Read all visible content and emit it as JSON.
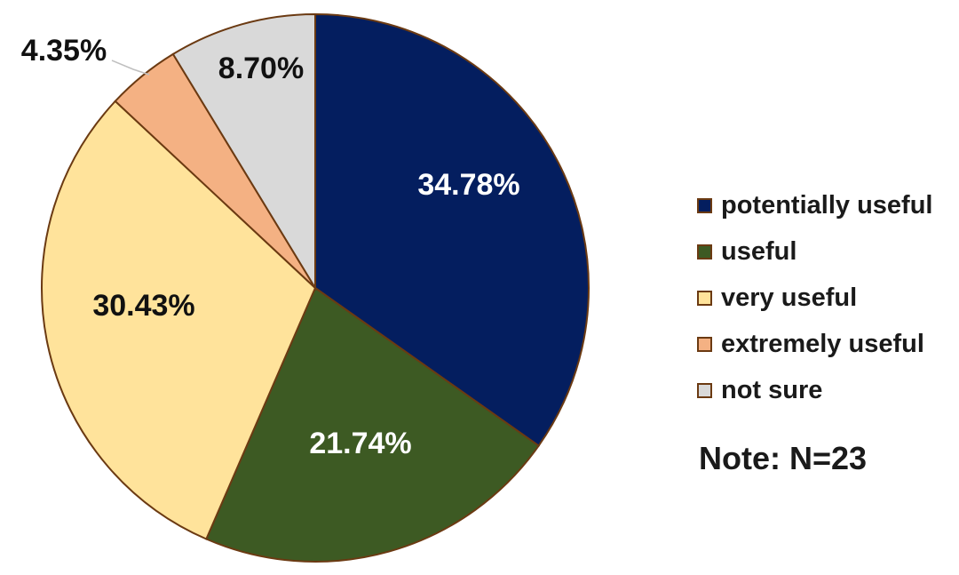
{
  "chart_data": {
    "type": "pie",
    "slices": [
      {
        "label": "potentially useful",
        "value": 34.78,
        "display": "34.78%",
        "color": "#041E5F",
        "label_color": "#ffffff"
      },
      {
        "label": "useful",
        "value": 21.74,
        "display": "21.74%",
        "color": "#3D5A23",
        "label_color": "#ffffff"
      },
      {
        "label": "very useful",
        "value": 30.43,
        "display": "30.43%",
        "color": "#FFE39B",
        "label_color": "#111111"
      },
      {
        "label": "extremely useful",
        "value": 4.35,
        "display": "4.35%",
        "color": "#F4B183",
        "label_color": "#111111"
      },
      {
        "label": "not sure",
        "value": 8.7,
        "display": "8.70%",
        "color": "#D9D9D9",
        "label_color": "#111111"
      }
    ],
    "start": "12 o'clock",
    "direction": "clockwise",
    "legend_position": "right",
    "edge_color": "#6B3A12"
  },
  "note": "Note: N=23"
}
